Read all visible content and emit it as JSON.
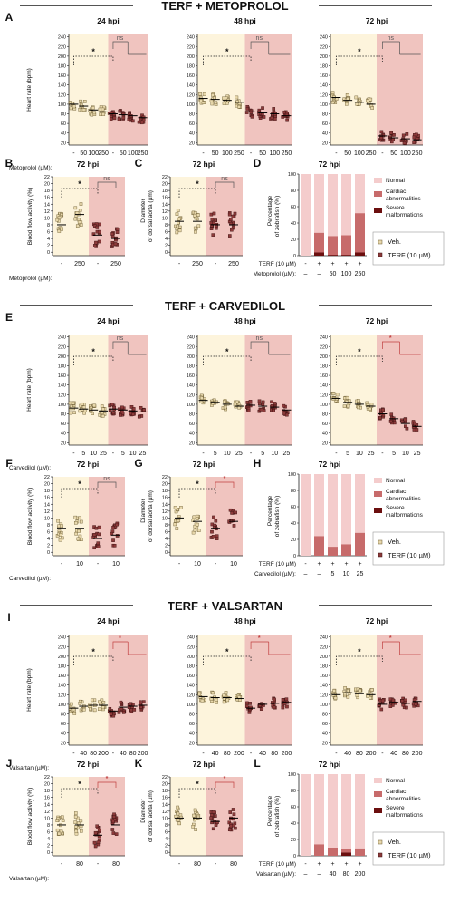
{
  "colors": {
    "veh_bg": "#fdf4dc",
    "terf_bg": "#f0c4bf",
    "veh_pt": "#e8d8ac",
    "terf_pt": "#8c3a3a",
    "normal": "#f4cccc",
    "cardiac": "#c76b6b",
    "severe": "#6b0f0f",
    "section_bar": "#555555"
  },
  "sections": [
    {
      "title": "TERF + METOPROLOL",
      "drug": "Metoprolol (µM):",
      "doses": [
        "50",
        "100",
        "250"
      ],
      "hr_sig": [
        "*",
        "ns",
        "*",
        "ns",
        "*",
        "ns"
      ],
      "hr_means": [
        [
          100,
          96,
          88,
          84,
          80,
          78,
          76,
          72
        ],
        [
          112,
          110,
          108,
          104,
          84,
          82,
          80,
          76
        ],
        [
          114,
          108,
          104,
          100,
          34,
          30,
          28,
          26
        ]
      ],
      "bf_means": [
        8,
        11,
        5,
        4
      ],
      "bf_sig": [
        "*",
        "ns"
      ],
      "da_means": [
        9,
        9,
        8,
        8
      ],
      "da_sig": [
        "*",
        "ns"
      ],
      "bar_doses": [
        "-",
        "-",
        "50",
        "100",
        "250"
      ],
      "bar_cardiac": [
        0,
        28,
        24,
        25,
        52
      ],
      "bar_severe": [
        0,
        4,
        1,
        1,
        4
      ],
      "pair_dose": "250"
    },
    {
      "title": "TERF + CARVEDILOL",
      "drug": "Carvedilol (µM):",
      "doses": [
        "5",
        "10",
        "25"
      ],
      "hr_sig": [
        "*",
        "ns",
        "*",
        "ns",
        "*",
        "*"
      ],
      "hr_means": [
        [
          92,
          90,
          88,
          86,
          90,
          88,
          86,
          84
        ],
        [
          108,
          104,
          100,
          96,
          98,
          96,
          94,
          88
        ],
        [
          112,
          104,
          100,
          96,
          80,
          70,
          60,
          54
        ]
      ],
      "bf_means": [
        7,
        7,
        4,
        5
      ],
      "bf_sig": [
        "*",
        "ns"
      ],
      "da_means": [
        10,
        9,
        7,
        9
      ],
      "da_sig": [
        "*",
        "*"
      ],
      "bar_doses": [
        "-",
        "-",
        "5",
        "10",
        "25"
      ],
      "bar_cardiac": [
        0,
        24,
        11,
        14,
        28
      ],
      "bar_severe": [
        0,
        0,
        0,
        0,
        0
      ],
      "pair_dose": "10"
    },
    {
      "title": "TERF + VALSARTAN",
      "drug": "Valsartan (µM):",
      "doses": [
        "40",
        "80",
        "200"
      ],
      "hr_sig": [
        "*",
        "*",
        "*",
        "*",
        "*",
        "*"
      ],
      "hr_means": [
        [
          92,
          96,
          98,
          98,
          86,
          94,
          96,
          98
        ],
        [
          116,
          114,
          114,
          112,
          92,
          100,
          102,
          104
        ],
        [
          120,
          124,
          122,
          120,
          100,
          104,
          102,
          106
        ]
      ],
      "bf_means": [
        8,
        8,
        5,
        8
      ],
      "bf_sig": [
        "*",
        "*"
      ],
      "da_means": [
        10,
        10,
        9,
        10
      ],
      "da_sig": [
        "*",
        "*"
      ],
      "bar_doses": [
        "-",
        "-",
        "40",
        "80",
        "200"
      ],
      "bar_cardiac": [
        0,
        14,
        10,
        8,
        9
      ],
      "bar_severe": [
        0,
        0,
        0,
        4,
        0
      ],
      "pair_dose": "80"
    }
  ],
  "labels": {
    "letters": [
      "A",
      "B",
      "C",
      "D",
      "E",
      "F",
      "G",
      "H",
      "I",
      "J",
      "K",
      "L"
    ],
    "hpi": [
      "24 hpi",
      "48 hpi",
      "72 hpi"
    ],
    "hr_axis": "Heart rate (bpm)",
    "bf_axis": "Blood flow activity (%)",
    "da_axis": [
      "Diameter",
      "of dorsal aorta (µm)"
    ],
    "pct_axis": [
      "Percentage",
      "of zebrafish (%)"
    ],
    "hr_ticks": [
      "20",
      "40",
      "60",
      "80",
      "100",
      "120",
      "140",
      "160",
      "180",
      "200",
      "220",
      "240"
    ],
    "bf_ticks": [
      "0",
      "2",
      "4",
      "6",
      "8",
      "10",
      "12",
      "14",
      "16",
      "18",
      "20",
      "22"
    ],
    "pct_ticks": [
      "0",
      "20",
      "40",
      "60",
      "80",
      "100"
    ],
    "terf_row": "TERF (10 µM)",
    "dash": "-",
    "plus": "+",
    "en_dash": "–",
    "legend_normal": "Normal",
    "legend_cardiac": [
      "Cardiac",
      "abnormalities"
    ],
    "legend_severe": [
      "Severe",
      "malformations"
    ],
    "legend_veh": "Veh.",
    "legend_terf": "TERF (10 µM)"
  }
}
